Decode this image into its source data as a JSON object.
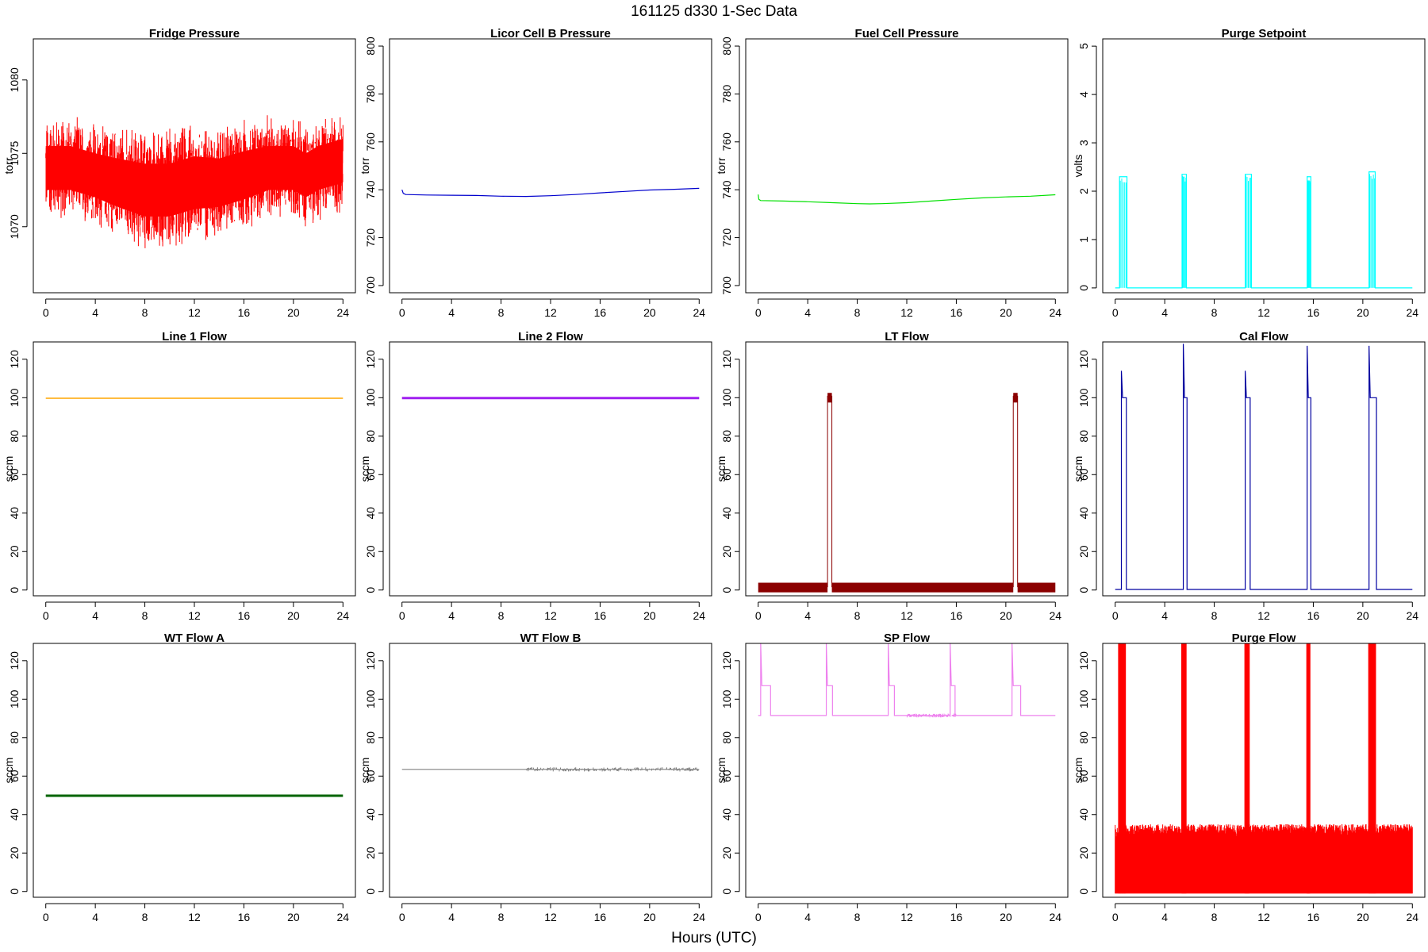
{
  "figure": {
    "title": "161125    d330    1-Sec Data",
    "xlabel": "Hours (UTC)"
  },
  "chart_data": [
    {
      "type": "line",
      "title": "Fridge Pressure",
      "ylabel": "torr",
      "color": "#ff0000",
      "style": "noisy",
      "xlim": [
        0,
        24
      ],
      "ylim": [
        1065.5,
        1082.8
      ],
      "xticks": [
        0,
        4,
        8,
        12,
        16,
        20,
        24
      ],
      "yticks": [
        1070,
        1075,
        1080
      ],
      "x": [
        0,
        2,
        4,
        5.8,
        8,
        10,
        12,
        14,
        16,
        18,
        20,
        21,
        22,
        24
      ],
      "y": [
        1074,
        1074,
        1073.5,
        1073,
        1072.5,
        1072.5,
        1073,
        1073,
        1073.5,
        1074,
        1074,
        1073.5,
        1074,
        1074.5
      ],
      "band": [
        5,
        5,
        5,
        5.5,
        6,
        6,
        6,
        5.5,
        5.5,
        5,
        5,
        5,
        5,
        5
      ]
    },
    {
      "type": "line",
      "title": "Licor Cell B Pressure",
      "ylabel": "torr",
      "color": "#0000cd",
      "style": "line",
      "xlim": [
        0,
        24
      ],
      "ylim": [
        697,
        803
      ],
      "xticks": [
        0,
        4,
        8,
        12,
        16,
        20,
        24
      ],
      "yticks": [
        700,
        720,
        740,
        760,
        780,
        800
      ],
      "x": [
        0,
        0.1,
        0.3,
        2,
        4,
        6,
        8,
        10,
        12,
        14,
        16,
        18,
        20,
        22,
        24
      ],
      "y": [
        740,
        738.5,
        738,
        737.8,
        737.7,
        737.6,
        737.3,
        737.2,
        737.5,
        738,
        738.7,
        739.3,
        739.9,
        740.2,
        740.6
      ]
    },
    {
      "type": "line",
      "title": "Fuel Cell Pressure",
      "ylabel": "torr",
      "color": "#00e000",
      "style": "line",
      "xlim": [
        0,
        24
      ],
      "ylim": [
        697,
        803
      ],
      "xticks": [
        0,
        4,
        8,
        12,
        16,
        20,
        24
      ],
      "yticks": [
        700,
        720,
        740,
        760,
        780,
        800
      ],
      "x": [
        0,
        0.05,
        0.2,
        2,
        4,
        6,
        8,
        9,
        10,
        12,
        14,
        16,
        18,
        20,
        22,
        24
      ],
      "y": [
        738,
        736,
        735.5,
        735.3,
        735,
        734.6,
        734.2,
        734.1,
        734.2,
        734.6,
        735.3,
        736,
        736.6,
        737,
        737.3,
        737.9
      ]
    },
    {
      "type": "line",
      "title": "Purge Setpoint",
      "ylabel": "volts",
      "color": "#00ffff",
      "style": "pulse",
      "xlim": [
        0,
        24
      ],
      "ylim": [
        -0.1,
        5.15
      ],
      "xticks": [
        0,
        4,
        8,
        12,
        16,
        20,
        24
      ],
      "yticks": [
        0,
        1,
        2,
        3,
        4,
        5
      ],
      "baseline": 0,
      "pulses": [
        [
          0.35,
          0.95,
          2.3
        ],
        [
          5.4,
          5.75,
          2.35
        ],
        [
          10.5,
          11.0,
          2.35
        ],
        [
          15.5,
          15.8,
          2.3
        ],
        [
          20.5,
          21.0,
          2.4
        ]
      ]
    },
    {
      "type": "line",
      "title": "Line 1 Flow",
      "ylabel": "sccm",
      "color": "#ffa500",
      "style": "line",
      "xlim": [
        0,
        24
      ],
      "ylim": [
        -3,
        129
      ],
      "xticks": [
        0,
        4,
        8,
        12,
        16,
        20,
        24
      ],
      "yticks": [
        0,
        20,
        40,
        60,
        80,
        100,
        120
      ],
      "x": [
        0,
        24
      ],
      "y": [
        99.7,
        99.7
      ],
      "lw": 1.5
    },
    {
      "type": "line",
      "title": "Line 2 Flow",
      "ylabel": "sccm",
      "color": "#a020f0",
      "style": "line",
      "xlim": [
        0,
        24
      ],
      "ylim": [
        -3,
        129
      ],
      "xticks": [
        0,
        4,
        8,
        12,
        16,
        20,
        24
      ],
      "yticks": [
        0,
        20,
        40,
        60,
        80,
        100,
        120
      ],
      "x": [
        0,
        24
      ],
      "y": [
        99.8,
        99.8
      ],
      "lw": 3
    },
    {
      "type": "line",
      "title": "LT Flow",
      "ylabel": "sccm",
      "color": "#8b0000",
      "style": "pulse-band",
      "xlim": [
        0,
        24
      ],
      "ylim": [
        -3,
        129
      ],
      "xticks": [
        0,
        4,
        8,
        12,
        16,
        20,
        24
      ],
      "yticks": [
        0,
        20,
        40,
        60,
        80,
        100,
        120
      ],
      "baseline": 1.5,
      "bandLow": -1.2,
      "bandHigh": 3.8,
      "pulses": [
        [
          5.6,
          5.95,
          101
        ],
        [
          20.6,
          20.95,
          101
        ]
      ]
    },
    {
      "type": "line",
      "title": "Cal Flow",
      "ylabel": "sccm",
      "color": "#0000a0",
      "style": "pulse",
      "xlim": [
        0,
        24
      ],
      "ylim": [
        -3,
        129
      ],
      "xticks": [
        0,
        4,
        8,
        12,
        16,
        20,
        24
      ],
      "yticks": [
        0,
        20,
        40,
        60,
        80,
        100,
        120
      ],
      "baseline": 0.3,
      "pulses": [
        [
          0.5,
          0.9,
          100,
          114
        ],
        [
          5.5,
          5.8,
          100,
          128
        ],
        [
          10.5,
          10.9,
          100,
          114
        ],
        [
          15.5,
          15.8,
          100,
          127
        ],
        [
          20.5,
          21.1,
          100,
          127
        ]
      ]
    },
    {
      "type": "line",
      "title": "WT Flow A",
      "ylabel": "sccm",
      "color": "#006400",
      "style": "line",
      "xlim": [
        0,
        24
      ],
      "ylim": [
        -3,
        129
      ],
      "xticks": [
        0,
        4,
        8,
        12,
        16,
        20,
        24
      ],
      "yticks": [
        0,
        20,
        40,
        60,
        80,
        100,
        120
      ],
      "x": [
        0,
        24
      ],
      "y": [
        49.8,
        49.8
      ],
      "lw": 3
    },
    {
      "type": "line",
      "title": "WT Flow B",
      "ylabel": "sccm",
      "color": "#808080",
      "style": "noisy-line",
      "xlim": [
        0,
        24
      ],
      "ylim": [
        -3,
        129
      ],
      "xticks": [
        0,
        4,
        8,
        12,
        16,
        20,
        24
      ],
      "yticks": [
        0,
        20,
        40,
        60,
        80,
        100,
        120
      ],
      "x": [
        0,
        24
      ],
      "y": [
        63.5,
        63.5
      ]
    },
    {
      "type": "line",
      "title": "SP Flow",
      "ylabel": "sccm",
      "color": "#ee82ee",
      "style": "pulse",
      "xlim": [
        0,
        24
      ],
      "ylim": [
        -3,
        129
      ],
      "xticks": [
        0,
        4,
        8,
        12,
        16,
        20,
        24
      ],
      "yticks": [
        0,
        20,
        40,
        60,
        80,
        100,
        120
      ],
      "baseline": 91.5,
      "pulses": [
        [
          0.2,
          1.0,
          107,
          129
        ],
        [
          5.5,
          6.0,
          107,
          129
        ],
        [
          10.5,
          11.0,
          107,
          129
        ],
        [
          15.5,
          15.9,
          107,
          129
        ],
        [
          20.5,
          21.2,
          107,
          129
        ]
      ]
    },
    {
      "type": "line",
      "title": "Purge Flow",
      "ylabel": "sccm",
      "color": "#ff0000",
      "style": "pulse-fill",
      "xlim": [
        0,
        24
      ],
      "ylim": [
        -3,
        129
      ],
      "xticks": [
        0,
        4,
        8,
        12,
        16,
        20,
        24
      ],
      "yticks": [
        0,
        20,
        40,
        60,
        80,
        100,
        120
      ],
      "baseline": 30,
      "pulses": [
        [
          0.3,
          0.8,
          129
        ],
        [
          5.4,
          5.7,
          129
        ],
        [
          10.5,
          10.8,
          129
        ],
        [
          15.5,
          15.7,
          129
        ],
        [
          20.5,
          21.0,
          129
        ]
      ]
    }
  ]
}
